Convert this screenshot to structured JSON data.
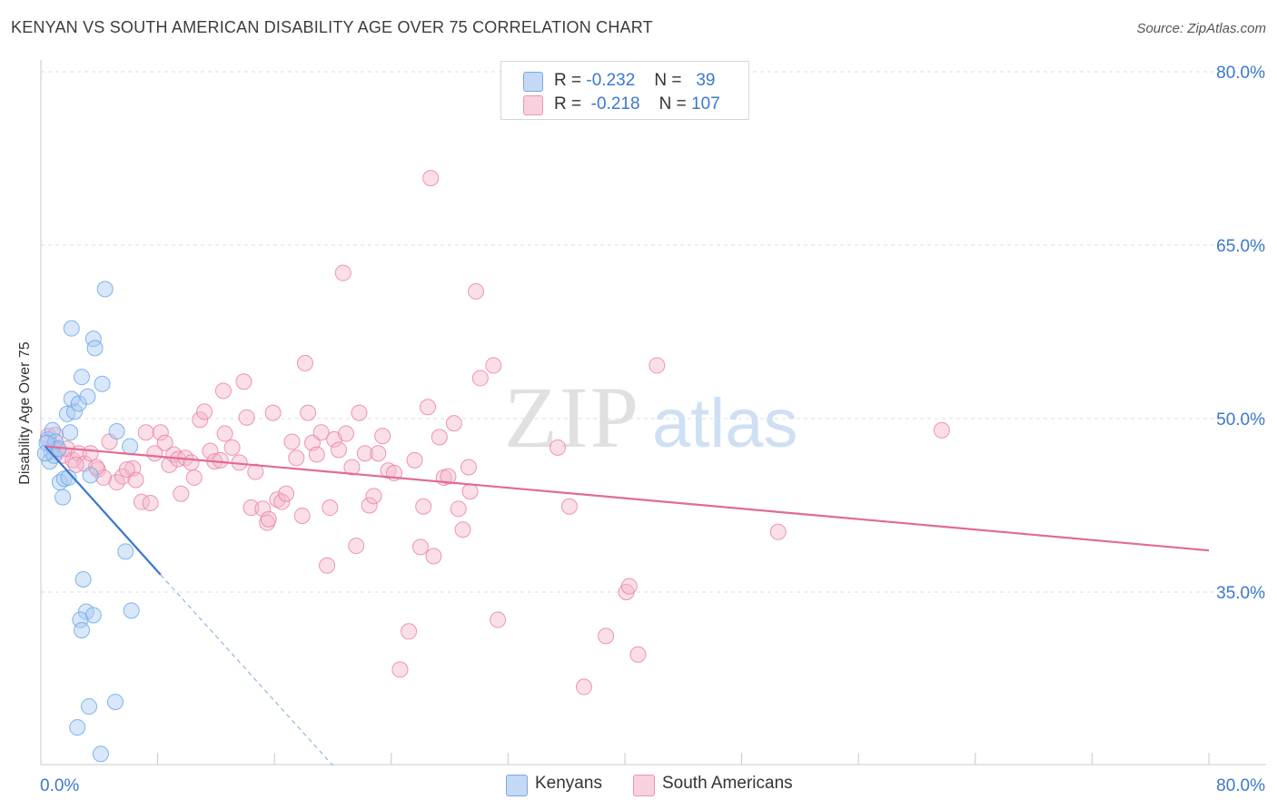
{
  "title": "KENYAN VS SOUTH AMERICAN DISABILITY AGE OVER 75 CORRELATION CHART",
  "source": "Source: ZipAtlas.com",
  "legend": {
    "rows": [
      {
        "r_label": "R =",
        "r_value": "-0.232",
        "n_label": "N =",
        "n_value": "39",
        "color": "#a9c9f2"
      },
      {
        "r_label": "R =",
        "r_value": "-0.218",
        "n_label": "N =",
        "n_value": "107",
        "color": "#f5b8cb"
      }
    ]
  },
  "bottom_legend": [
    {
      "label": "Kenyans",
      "color": "#a9c9f2"
    },
    {
      "label": "South Americans",
      "color": "#f5b8cb"
    }
  ],
  "watermark": {
    "zip": "ZIP",
    "atlas": "atlas"
  },
  "chart_data": {
    "type": "scatter",
    "title": "KENYAN VS SOUTH AMERICAN DISABILITY AGE OVER 75 CORRELATION CHART",
    "xlabel": "",
    "ylabel": "Disability Age Over 75",
    "xlim": [
      0,
      80
    ],
    "ylim": [
      20,
      82
    ],
    "x_tick_labels": [
      {
        "value": 0,
        "label": "0.0%"
      },
      {
        "value": 80,
        "label": "80.0%"
      }
    ],
    "y_tick_labels": [
      {
        "value": 35,
        "label": "35.0%"
      },
      {
        "value": 50,
        "label": "50.0%"
      },
      {
        "value": 65,
        "label": "65.0%"
      },
      {
        "value": 80,
        "label": "80.0%"
      }
    ],
    "grid": true,
    "legend_position": "top-center",
    "series": [
      {
        "name": "Kenyans",
        "color": "#6fa8e8",
        "fill": "#a9c9f2",
        "r": -0.232,
        "n": 39,
        "trend": {
          "x0": 0.3,
          "y0": 47.6,
          "x1": 8.2,
          "y1": 36.5,
          "dash_to_x": 20,
          "dash_to_y": 20
        },
        "points": [
          [
            0.5,
            48.2
          ],
          [
            0.7,
            47.1
          ],
          [
            0.6,
            46.3
          ],
          [
            0.8,
            49.0
          ],
          [
            1.0,
            48.0
          ],
          [
            0.9,
            46.8
          ],
          [
            1.2,
            47.4
          ],
          [
            0.4,
            47.9
          ],
          [
            1.3,
            44.5
          ],
          [
            1.5,
            43.2
          ],
          [
            1.6,
            44.8
          ],
          [
            1.9,
            44.9
          ],
          [
            1.8,
            50.4
          ],
          [
            2.1,
            51.7
          ],
          [
            2.3,
            50.6
          ],
          [
            2.6,
            51.3
          ],
          [
            2.0,
            48.8
          ],
          [
            2.8,
            53.6
          ],
          [
            3.2,
            51.9
          ],
          [
            3.4,
            45.1
          ],
          [
            3.6,
            56.9
          ],
          [
            3.7,
            56.1
          ],
          [
            4.2,
            53.0
          ],
          [
            4.4,
            61.2
          ],
          [
            2.1,
            57.8
          ],
          [
            5.2,
            48.9
          ],
          [
            6.1,
            47.6
          ],
          [
            5.8,
            38.5
          ],
          [
            2.9,
            36.1
          ],
          [
            3.1,
            33.3
          ],
          [
            3.6,
            33.0
          ],
          [
            2.7,
            32.6
          ],
          [
            2.8,
            31.7
          ],
          [
            6.2,
            33.4
          ],
          [
            3.3,
            25.1
          ],
          [
            5.1,
            25.5
          ],
          [
            2.5,
            23.3
          ],
          [
            4.1,
            21.0
          ],
          [
            0.3,
            47.0
          ]
        ]
      },
      {
        "name": "South Americans",
        "color": "#ea84a6",
        "fill": "#f5b8cb",
        "r": -0.218,
        "n": 107,
        "trend": {
          "x0": 0.3,
          "y0": 47.6,
          "x1": 80,
          "y1": 38.6
        },
        "points": [
          [
            0.5,
            48.5
          ],
          [
            0.8,
            47.6
          ],
          [
            1.2,
            47.2
          ],
          [
            1.5,
            46.8
          ],
          [
            1.8,
            47.4
          ],
          [
            2.2,
            46.4
          ],
          [
            2.6,
            47.0
          ],
          [
            3.0,
            46.1
          ],
          [
            3.4,
            47.0
          ],
          [
            3.9,
            45.6
          ],
          [
            4.3,
            44.9
          ],
          [
            4.7,
            48.0
          ],
          [
            5.2,
            44.5
          ],
          [
            5.6,
            45.0
          ],
          [
            6.3,
            45.7
          ],
          [
            6.5,
            44.7
          ],
          [
            6.9,
            42.8
          ],
          [
            7.2,
            48.8
          ],
          [
            7.5,
            42.7
          ],
          [
            7.8,
            47.0
          ],
          [
            8.2,
            48.8
          ],
          [
            8.5,
            47.9
          ],
          [
            8.8,
            46.0
          ],
          [
            9.1,
            46.9
          ],
          [
            9.4,
            46.5
          ],
          [
            9.9,
            46.6
          ],
          [
            9.6,
            43.5
          ],
          [
            10.3,
            46.2
          ],
          [
            10.5,
            44.9
          ],
          [
            10.9,
            49.9
          ],
          [
            11.2,
            50.6
          ],
          [
            11.6,
            47.2
          ],
          [
            11.9,
            46.3
          ],
          [
            12.3,
            46.4
          ],
          [
            12.5,
            52.4
          ],
          [
            12.6,
            48.7
          ],
          [
            13.1,
            47.5
          ],
          [
            13.6,
            46.2
          ],
          [
            13.9,
            53.2
          ],
          [
            14.1,
            50.1
          ],
          [
            14.4,
            42.3
          ],
          [
            14.7,
            45.4
          ],
          [
            15.2,
            42.2
          ],
          [
            15.5,
            41.0
          ],
          [
            15.6,
            41.3
          ],
          [
            15.9,
            50.5
          ],
          [
            16.2,
            43.0
          ],
          [
            16.5,
            42.8
          ],
          [
            16.8,
            43.5
          ],
          [
            17.2,
            48.0
          ],
          [
            17.5,
            46.6
          ],
          [
            17.9,
            41.6
          ],
          [
            18.1,
            54.8
          ],
          [
            18.3,
            50.5
          ],
          [
            18.6,
            47.9
          ],
          [
            18.9,
            46.9
          ],
          [
            19.2,
            48.8
          ],
          [
            19.6,
            37.3
          ],
          [
            19.8,
            42.3
          ],
          [
            20.1,
            48.2
          ],
          [
            20.4,
            47.3
          ],
          [
            20.7,
            62.6
          ],
          [
            20.9,
            48.7
          ],
          [
            21.3,
            45.8
          ],
          [
            21.6,
            39.0
          ],
          [
            21.8,
            50.5
          ],
          [
            22.2,
            47.0
          ],
          [
            22.5,
            42.5
          ],
          [
            22.8,
            43.3
          ],
          [
            23.1,
            47.0
          ],
          [
            23.4,
            48.5
          ],
          [
            23.8,
            45.5
          ],
          [
            24.2,
            45.3
          ],
          [
            25.2,
            31.6
          ],
          [
            24.6,
            28.3
          ],
          [
            25.6,
            46.4
          ],
          [
            26.0,
            38.9
          ],
          [
            26.2,
            42.4
          ],
          [
            26.5,
            51.0
          ],
          [
            26.7,
            70.8
          ],
          [
            26.9,
            38.1
          ],
          [
            27.3,
            48.4
          ],
          [
            27.6,
            44.9
          ],
          [
            27.9,
            45.0
          ],
          [
            28.3,
            49.6
          ],
          [
            28.6,
            42.2
          ],
          [
            28.9,
            40.4
          ],
          [
            29.3,
            45.8
          ],
          [
            29.4,
            43.7
          ],
          [
            29.8,
            61.0
          ],
          [
            30.1,
            53.5
          ],
          [
            31.0,
            54.6
          ],
          [
            31.3,
            32.6
          ],
          [
            35.4,
            47.5
          ],
          [
            36.2,
            42.4
          ],
          [
            37.2,
            26.8
          ],
          [
            38.7,
            31.2
          ],
          [
            40.1,
            35.0
          ],
          [
            40.3,
            35.5
          ],
          [
            40.9,
            29.6
          ],
          [
            42.2,
            54.6
          ],
          [
            50.5,
            40.2
          ],
          [
            61.7,
            49.0
          ],
          [
            1.0,
            48.6
          ],
          [
            2.4,
            46.0
          ],
          [
            3.8,
            45.8
          ],
          [
            5.9,
            45.6
          ]
        ]
      }
    ]
  }
}
